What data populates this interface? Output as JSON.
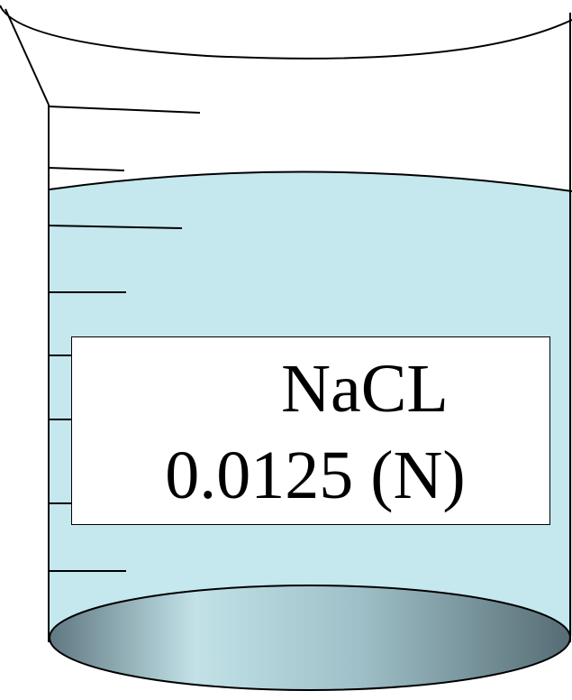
{
  "label": {
    "line1": "NaCL",
    "line2": "0.0125 (N)"
  },
  "colors": {
    "liquid": "#c5e7ee",
    "outline": "#000000",
    "bottom_dark": "#5f7881",
    "bottom_light": "#c2e2e8"
  }
}
